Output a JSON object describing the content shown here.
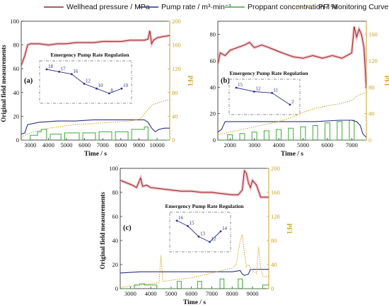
{
  "legend": [
    {
      "name": "Wellhead pressure / MPa",
      "color": "#8B2A1E",
      "style": "solid"
    },
    {
      "name": "Pump rate / m³·min⁻¹",
      "color": "#2B2F86",
      "style": "solid"
    },
    {
      "name": "Proppant concentration / %",
      "color": "#3DA83A",
      "style": "solid"
    },
    {
      "name": "PFI Monitoring Curve",
      "color": "#C9A227",
      "style": "dotted"
    }
  ],
  "colors": {
    "pressure": "#8B2A1E",
    "pressure_band": "#F2A8B8",
    "rate": "#2B2F86",
    "proppant": "#3DA83A",
    "pfi": "#C9A227"
  },
  "chart_data": [
    {
      "type": "line",
      "panel_label": "(a)",
      "xlabel": "Time / s",
      "ylabel_left": "Original field measurements",
      "ylabel_right": "PFI",
      "xlim": [
        2500,
        10700
      ],
      "xticks": [
        3000,
        4000,
        5000,
        6000,
        7000,
        8000,
        9000,
        10000
      ],
      "ylim_left": [
        0,
        100
      ],
      "yticks_left": [
        0,
        20,
        40,
        60,
        80,
        100
      ],
      "ylim_right": [
        0,
        200
      ],
      "yticks_right": [
        0,
        40,
        80,
        120,
        160,
        200
      ],
      "inset": {
        "title": "Emergency Pump Rate Regulation",
        "steps": [
          18,
          17,
          16,
          12,
          10,
          8,
          10
        ]
      },
      "series": [
        {
          "key": "pressure",
          "x": [
            2500,
            2700,
            2850,
            3000,
            3500,
            4000,
            4500,
            5000,
            5500,
            6000,
            6500,
            7000,
            7500,
            8000,
            8500,
            9000,
            9300,
            9500,
            9600,
            9700,
            9800,
            10000,
            10300,
            10700
          ],
          "y": [
            63,
            71,
            80,
            81,
            81,
            80,
            81,
            81,
            82,
            82,
            82,
            83,
            83,
            83,
            84,
            84,
            84,
            85,
            92,
            81,
            84,
            86,
            87,
            88
          ]
        },
        {
          "key": "rate",
          "x": [
            2500,
            2700,
            2850,
            3500,
            4500,
            5500,
            6500,
            7500,
            8500,
            9300,
            9500,
            9700,
            9900,
            10100,
            10400,
            10700
          ],
          "y": [
            5,
            6,
            13,
            15,
            16,
            16,
            17,
            17,
            17,
            17,
            15,
            10,
            7,
            9,
            10,
            10
          ]
        },
        {
          "key": "pfi",
          "x": [
            2500,
            3000,
            3500,
            4000,
            4500,
            5000,
            5500,
            6000,
            6500,
            7000,
            7500,
            8000,
            8500,
            9000,
            9200,
            9400,
            9600,
            9800,
            10000,
            10200,
            10400,
            10700
          ],
          "y": [
            5,
            12,
            16,
            20,
            22,
            24,
            26,
            27,
            28,
            29,
            30,
            31,
            32,
            35,
            40,
            48,
            55,
            60,
            62,
            64,
            66,
            68
          ]
        },
        {
          "key": "proppant",
          "x": [
            2500,
            3000,
            3000,
            3400,
            3400,
            3600,
            3600,
            3900,
            3900,
            4100,
            4100,
            4700,
            4700,
            4900,
            4900,
            5700,
            5700,
            5900,
            5900,
            6600,
            6600,
            6800,
            6800,
            7500,
            7500,
            7700,
            7700,
            8400,
            8400,
            8600,
            8600,
            9300,
            9300,
            9500,
            9500,
            9800,
            9800,
            10700
          ],
          "y": [
            0,
            0,
            4,
            4,
            7,
            7,
            9,
            9,
            0,
            0,
            5,
            5,
            0,
            0,
            6,
            6,
            0,
            0,
            6,
            6,
            0,
            0,
            7,
            7,
            0,
            0,
            7,
            7,
            0,
            0,
            9,
            9,
            11,
            11,
            0,
            0,
            0,
            0
          ]
        }
      ]
    },
    {
      "type": "line",
      "panel_label": "(b)",
      "xlabel": "Time / s",
      "ylabel_left": "",
      "ylabel_right": "PFI",
      "xlim": [
        1500,
        7600
      ],
      "xticks": [
        2000,
        3000,
        4000,
        5000,
        6000,
        7000
      ],
      "ylim_left": [
        0,
        90
      ],
      "yticks_left": [
        0,
        20,
        40,
        60,
        80
      ],
      "ylim_right": [
        0,
        180
      ],
      "yticks_right": [
        0,
        40,
        80,
        120,
        160
      ],
      "inset": {
        "title": "Emergency Pump Rate Regulation",
        "steps": [
          15,
          12,
          11,
          2
        ]
      },
      "series": [
        {
          "key": "pressure",
          "x": [
            1500,
            1600,
            1800,
            2000,
            2300,
            2600,
            2800,
            3000,
            3300,
            3600,
            4000,
            4300,
            4600,
            5000,
            5400,
            5800,
            6200,
            6600,
            7000,
            7100,
            7200,
            7300,
            7400,
            7500,
            7600
          ],
          "y": [
            58,
            66,
            64,
            68,
            70,
            72,
            74,
            70,
            72,
            70,
            67,
            65,
            63,
            62,
            64,
            62,
            64,
            62,
            66,
            86,
            78,
            84,
            80,
            70,
            39
          ]
        },
        {
          "key": "rate",
          "x": [
            1500,
            1650,
            1800,
            2500,
            3500,
            4500,
            5500,
            6500,
            7000,
            7200,
            7350,
            7450,
            7600
          ],
          "y": [
            6,
            8,
            14,
            14,
            14,
            14,
            14,
            15,
            15,
            14,
            11,
            5,
            2
          ]
        },
        {
          "key": "pfi",
          "x": [
            1500,
            2000,
            2500,
            3000,
            3500,
            4000,
            4500,
            5000,
            5500,
            6000,
            6500,
            7000,
            7200,
            7400,
            7600
          ],
          "y": [
            8,
            12,
            16,
            20,
            24,
            28,
            34,
            42,
            48,
            52,
            55,
            60,
            66,
            70,
            72
          ]
        },
        {
          "key": "proppant",
          "x": [
            1500,
            1900,
            1900,
            2100,
            2100,
            2400,
            2400,
            2600,
            2600,
            2900,
            2900,
            3100,
            3100,
            3400,
            3400,
            3600,
            3600,
            3900,
            3900,
            4100,
            4100,
            4400,
            4400,
            4600,
            4600,
            4900,
            4900,
            5100,
            5100,
            5400,
            5400,
            5600,
            5600,
            5900,
            5900,
            6100,
            6100,
            6400,
            6400,
            6600,
            6600,
            6900,
            6900,
            7100,
            7100,
            7600
          ],
          "y": [
            0,
            0,
            4,
            4,
            0,
            0,
            5,
            5,
            0,
            0,
            6,
            6,
            0,
            0,
            7,
            7,
            0,
            0,
            8,
            8,
            0,
            0,
            9,
            9,
            0,
            0,
            10,
            10,
            0,
            0,
            11,
            11,
            0,
            0,
            13,
            13,
            0,
            0,
            14,
            14,
            0,
            0,
            15,
            15,
            0,
            0
          ]
        }
      ]
    },
    {
      "type": "line",
      "panel_label": "(c)",
      "xlabel": "Time / s",
      "ylabel_left": "Original field measurements",
      "ylabel_right": "PFI",
      "xlim": [
        2500,
        9800
      ],
      "xticks": [
        3000,
        4000,
        5000,
        6000,
        7000,
        8000,
        9000
      ],
      "ylim_left": [
        0,
        100
      ],
      "yticks_left": [
        0,
        20,
        40,
        60,
        80,
        100
      ],
      "ylim_right": [
        0,
        200
      ],
      "yticks_right": [
        0,
        40,
        80,
        120,
        160,
        200
      ],
      "inset": {
        "title": "Emergency Pump Rate Regulation",
        "steps": [
          16,
          15,
          13,
          12,
          14
        ]
      },
      "series": [
        {
          "key": "pressure",
          "x": [
            2500,
            2800,
            3100,
            3300,
            3500,
            3600,
            3800,
            4000,
            4500,
            5000,
            5500,
            6000,
            6500,
            7000,
            7500,
            8000,
            8300,
            8500,
            8600,
            8700,
            8800,
            8900,
            9000,
            9200,
            9400,
            9800
          ],
          "y": [
            90,
            88,
            86,
            84,
            92,
            85,
            86,
            84,
            83,
            82,
            81,
            81,
            80,
            80,
            79,
            78,
            78,
            82,
            98,
            96,
            88,
            84,
            90,
            86,
            76,
            76
          ]
        },
        {
          "key": "rate",
          "x": [
            2500,
            3500,
            4500,
            5500,
            6500,
            7500,
            8000,
            8400,
            8500,
            8600,
            8800,
            8900,
            9100,
            9800
          ],
          "y": [
            13,
            14,
            14,
            14,
            14,
            14,
            14,
            15,
            12,
            11,
            12,
            16,
            16,
            16
          ]
        },
        {
          "key": "pfi",
          "x": [
            2500,
            3000,
            3500,
            4000,
            4400,
            4450,
            4500,
            4600,
            5000,
            5500,
            6000,
            6500,
            7000,
            7500,
            8000,
            8200,
            8400,
            8500,
            8600,
            8700,
            8800,
            9000,
            9200,
            9300,
            9400,
            9500,
            9800
          ],
          "y": [
            2,
            4,
            6,
            8,
            10,
            30,
            55,
            12,
            14,
            16,
            18,
            22,
            26,
            30,
            34,
            40,
            80,
            90,
            60,
            36,
            40,
            30,
            25,
            70,
            35,
            20,
            20
          ]
        },
        {
          "key": "proppant",
          "x": [
            2500,
            3200,
            3200,
            3450,
            3450,
            3700,
            3700,
            4300,
            4300,
            5300,
            5300,
            5500,
            5500,
            6300,
            6300,
            6500,
            6500,
            7400,
            7400,
            7600,
            7600,
            8300,
            8300,
            8500,
            8500,
            9500,
            9500,
            9800
          ],
          "y": [
            0,
            0,
            3,
            3,
            4,
            4,
            3,
            3,
            0,
            0,
            6,
            6,
            0,
            0,
            6,
            6,
            0,
            0,
            8,
            8,
            0,
            0,
            8,
            8,
            0,
            0,
            3,
            3
          ]
        }
      ]
    }
  ]
}
